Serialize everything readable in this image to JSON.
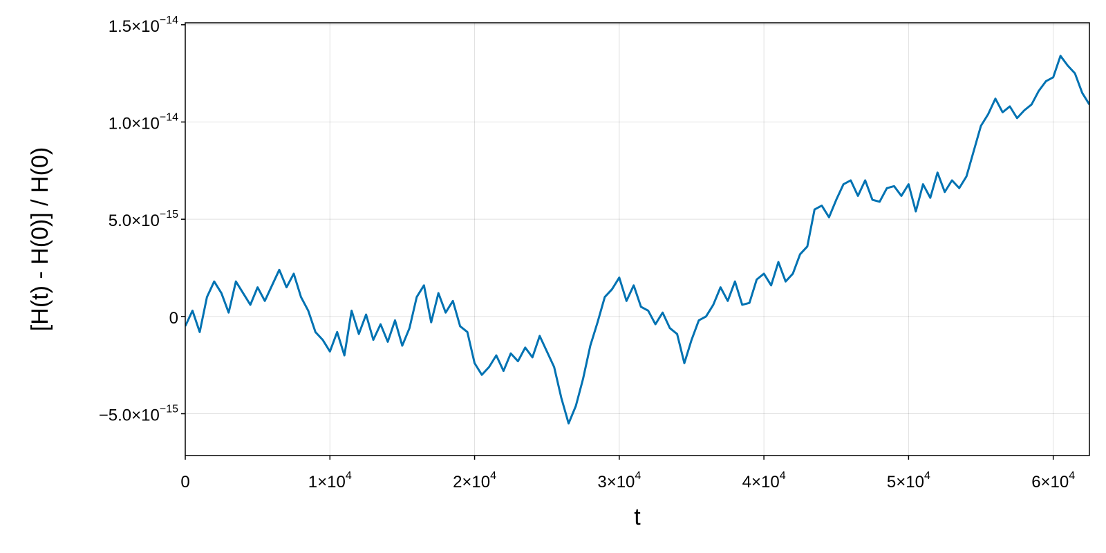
{
  "chart_data": {
    "type": "line",
    "xlabel": "t",
    "ylabel": "[H(t) - H(0)] / H(0)",
    "color": "#0072b2",
    "grid": true,
    "xlim": [
      0,
      62500
    ],
    "ylim": [
      -7.15e-15,
      1.51e-14
    ],
    "xticks": [
      0,
      {
        "value": 10000,
        "label": "1×10",
        "exponent": "4"
      },
      {
        "value": 20000,
        "label": "2×10",
        "exponent": "4"
      },
      {
        "value": 30000,
        "label": "3×10",
        "exponent": "4"
      },
      {
        "value": 40000,
        "label": "4×10",
        "exponent": "4"
      },
      {
        "value": 50000,
        "label": "5×10",
        "exponent": "4"
      },
      {
        "value": 60000,
        "label": "6×10",
        "exponent": "4"
      }
    ],
    "yticks": [
      {
        "value": -5e-15,
        "label": "−5.0×10",
        "exponent": "−15"
      },
      0,
      {
        "value": 5e-15,
        "label": "5.0×10",
        "exponent": "−15"
      },
      {
        "value": 1e-14,
        "label": "1.0×10",
        "exponent": "−14"
      },
      {
        "value": 1.5e-14,
        "label": "1.5×10",
        "exponent": "−14"
      }
    ],
    "x": [
      0,
      500,
      1000,
      1500,
      2000,
      2500,
      3000,
      3500,
      4000,
      4500,
      5000,
      5500,
      6000,
      6500,
      7000,
      7500,
      8000,
      8500,
      9000,
      9500,
      10000,
      10500,
      11000,
      11500,
      12000,
      12500,
      13000,
      13500,
      14000,
      14500,
      15000,
      15500,
      16000,
      16500,
      17000,
      17500,
      18000,
      18500,
      19000,
      19500,
      20000,
      20500,
      21000,
      21500,
      22000,
      22500,
      23000,
      23500,
      24000,
      24500,
      25000,
      25500,
      26000,
      26500,
      27000,
      27500,
      28000,
      28500,
      29000,
      29500,
      30000,
      30500,
      31000,
      31500,
      32000,
      32500,
      33000,
      33500,
      34000,
      34500,
      35000,
      35500,
      36000,
      36500,
      37000,
      37500,
      38000,
      38500,
      39000,
      39500,
      40000,
      40500,
      41000,
      41500,
      42000,
      42500,
      43000,
      43500,
      44000,
      44500,
      45000,
      45500,
      46000,
      46500,
      47000,
      47500,
      48000,
      48500,
      49000,
      49500,
      50000,
      50500,
      51000,
      51500,
      52000,
      52500,
      53000,
      53500,
      54000,
      54500,
      55000,
      55500,
      56000,
      56500,
      57000,
      57500,
      58000,
      58500,
      59000,
      59500,
      60000,
      60500,
      61000,
      61500,
      62000,
      62500
    ],
    "values": [
      -5e-16,
      3e-16,
      -8e-16,
      1e-15,
      1.8e-15,
      1.2e-15,
      2e-16,
      1.8e-15,
      1.2e-15,
      6e-16,
      1.5e-15,
      8e-16,
      1.6e-15,
      2.4e-15,
      1.5e-15,
      2.2e-15,
      1e-15,
      3e-16,
      -8e-16,
      -1.2e-15,
      -1.8e-15,
      -8e-16,
      -2e-15,
      3e-16,
      -9e-16,
      1e-16,
      -1.2e-15,
      -4e-16,
      -1.3e-15,
      -2e-16,
      -1.5e-15,
      -6e-16,
      1e-15,
      1.6e-15,
      -3e-16,
      1.2e-15,
      2e-16,
      8e-16,
      -5e-16,
      -8e-16,
      -2.4e-15,
      -3e-15,
      -2.6e-15,
      -2e-15,
      -2.8e-15,
      -1.9e-15,
      -2.3e-15,
      -1.6e-15,
      -2.1e-15,
      -1e-15,
      -1.8e-15,
      -2.6e-15,
      -4.2e-15,
      -5.5e-15,
      -4.6e-15,
      -3.2e-15,
      -1.5e-15,
      -3e-16,
      1e-15,
      1.4e-15,
      2e-15,
      8e-16,
      1.6e-15,
      5e-16,
      3e-16,
      -4e-16,
      2e-16,
      -6e-16,
      -9e-16,
      -2.4e-15,
      -1.2e-15,
      -2e-16,
      0.0,
      6e-16,
      1.5e-15,
      8e-16,
      1.8e-15,
      6e-16,
      7e-16,
      1.9e-15,
      2.2e-15,
      1.6e-15,
      2.8e-15,
      1.8e-15,
      2.2e-15,
      3.2e-15,
      3.6e-15,
      5.5e-15,
      5.7e-15,
      5.1e-15,
      6e-15,
      6.8e-15,
      7e-15,
      6.2e-15,
      7e-15,
      6e-15,
      5.9e-15,
      6.6e-15,
      6.7e-15,
      6.2e-15,
      6.8e-15,
      5.4e-15,
      6.8e-15,
      6.1e-15,
      7.4e-15,
      6.4e-15,
      7e-15,
      6.6e-15,
      7.2e-15,
      8.5e-15,
      9.8e-15,
      1.04e-14,
      1.12e-14,
      1.05e-14,
      1.08e-14,
      1.02e-14,
      1.06e-14,
      1.09e-14,
      1.16e-14,
      1.21e-14,
      1.23e-14,
      1.34e-14,
      1.29e-14,
      1.25e-14,
      1.15e-14,
      1.09e-14
    ]
  }
}
